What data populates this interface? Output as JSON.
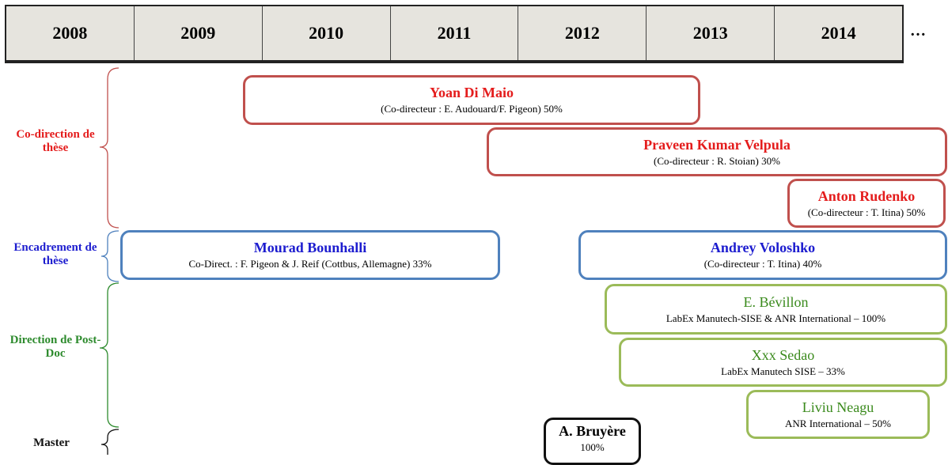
{
  "header": {
    "years": [
      "2008",
      "2009",
      "2010",
      "2011",
      "2012",
      "2013",
      "2014"
    ],
    "more": "…"
  },
  "sections": [
    {
      "label": "Co-direction de thèse"
    },
    {
      "label": "Encadrement de thèse"
    },
    {
      "label": "Direction de Post-Doc"
    },
    {
      "label": "Master"
    }
  ],
  "boxes": [
    {
      "name": "Yoan Di Maio",
      "detail": "(Co-directeur : E. Audouard/F. Pigeon) 50%"
    },
    {
      "name": "Praveen Kumar Velpula",
      "detail": "(Co-directeur : R. Stoian) 30%"
    },
    {
      "name": "Anton Rudenko",
      "detail": "(Co-directeur : T. Itina) 50%"
    },
    {
      "name": "Mourad Bounhalli",
      "detail": "Co-Direct. : F. Pigeon & J. Reif (Cottbus, Allemagne) 33%"
    },
    {
      "name": "Andrey Voloshko",
      "detail": "(Co-directeur : T. Itina)  40%"
    },
    {
      "name": "E. Bévillon",
      "detail": "LabEx Manutech-SISE & ANR International – 100%"
    },
    {
      "name": "Xxx Sedao",
      "detail": "LabEx Manutech SISE – 33%"
    },
    {
      "name": "Liviu Neagu",
      "detail": "ANR International – 50%"
    },
    {
      "name": "A. Bruyère",
      "detail": "100%"
    }
  ]
}
